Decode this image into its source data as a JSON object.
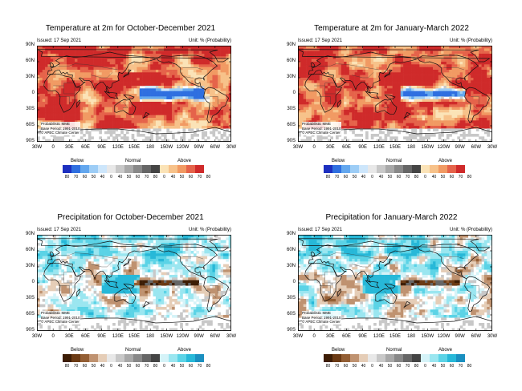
{
  "common": {
    "issued": "Issued: 17 Sep 2021",
    "unit": "Unit: % (Probability)",
    "info": [
      "Probabilistic MME",
      "Base Period: 1991-2010",
      "© APEC Climate Center"
    ],
    "lat_labels": [
      "90N",
      "60N",
      "30N",
      "0",
      "30S",
      "60S",
      "90S"
    ],
    "lon_labels": [
      "30W",
      "0",
      "30E",
      "60E",
      "90E",
      "120E",
      "150E",
      "180",
      "150W",
      "120W",
      "90W",
      "60W",
      "30W"
    ],
    "legend_categories": [
      "Below",
      "Normal",
      "Above"
    ],
    "legend_ticks": [
      "80",
      "70",
      "60",
      "50",
      "40",
      "0",
      "40",
      "50",
      "60",
      "70",
      "80",
      "0",
      "40",
      "50",
      "60",
      "70",
      "80"
    ]
  },
  "panels": [
    {
      "title": "Temperature at 2m for October-December 2021",
      "variable": "temperature"
    },
    {
      "title": "Temperature at 2m for January-March 2022",
      "variable": "temperature"
    },
    {
      "title": "Precipitation for October-December 2021",
      "variable": "precipitation"
    },
    {
      "title": "Precipitation for January-March 2022",
      "variable": "precipitation"
    }
  ],
  "colors": {
    "temperature_below": [
      "#1d2fbf",
      "#2f6fe0",
      "#63a7ee",
      "#9dcdf6",
      "#cde6fb"
    ],
    "temperature_normal": [
      "#e8e8e8",
      "#c8c8c8",
      "#a8a8a8",
      "#888888",
      "#666666",
      "#444444"
    ],
    "temperature_above": [
      "#fbe3b7",
      "#f7c28a",
      "#f19a63",
      "#e5634a",
      "#cf2a2a"
    ],
    "precip_below": [
      "#3d1d05",
      "#6b3a14",
      "#935e34",
      "#bf9270",
      "#e5cdb7"
    ],
    "precip_normal": [
      "#e8e8e8",
      "#c8c8c8",
      "#a8a8a8",
      "#888888",
      "#666666",
      "#444444"
    ],
    "precip_above": [
      "#d5f3f8",
      "#9ae6f0",
      "#5bd3e6",
      "#27b8d8",
      "#1a8fc0"
    ]
  }
}
